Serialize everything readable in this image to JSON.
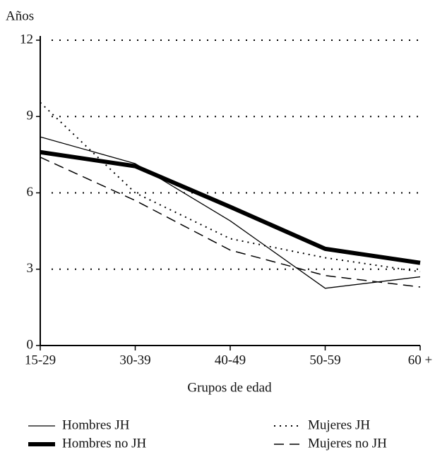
{
  "chart_data": {
    "type": "line",
    "y_label": "Años",
    "x_label": "Grupos de edad",
    "categories": [
      "15-29",
      "30-39",
      "40-49",
      "50-59",
      "60 +"
    ],
    "ylim": [
      0,
      12
    ],
    "yticks": [
      0,
      3,
      6,
      9,
      12
    ],
    "grid": true,
    "series": [
      {
        "name": "Hombres JH",
        "color": "#000000",
        "style": "solid",
        "width": 1.3,
        "values": [
          8.2,
          7.15,
          4.9,
          2.25,
          2.7
        ]
      },
      {
        "name": "Mujeres JH",
        "color": "#000000",
        "style": "dotted",
        "width": 2,
        "values": [
          9.55,
          6.0,
          4.2,
          3.45,
          2.9
        ]
      },
      {
        "name": "Hombres no JH",
        "color": "#000000",
        "style": "solid",
        "width": 6,
        "values": [
          7.6,
          7.05,
          5.45,
          3.8,
          3.25
        ]
      },
      {
        "name": "Mujeres no JH",
        "color": "#000000",
        "style": "dashed",
        "width": 1.5,
        "values": [
          7.4,
          5.7,
          3.75,
          2.75,
          2.3
        ]
      }
    ]
  }
}
